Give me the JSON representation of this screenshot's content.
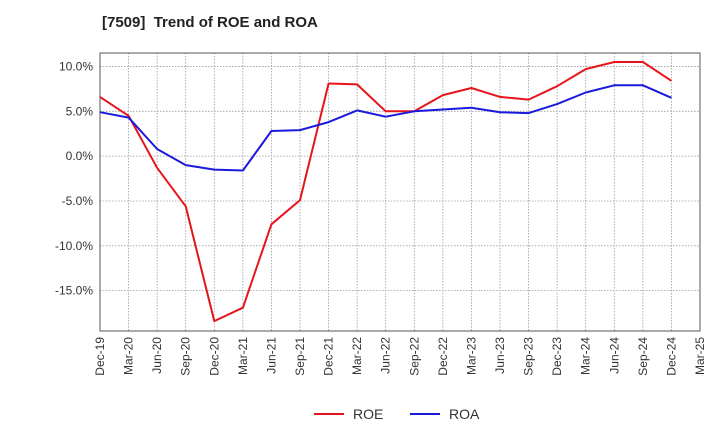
{
  "chart_data": {
    "type": "line",
    "title": "[7509]  Trend of ROE and ROA",
    "xlabel": "",
    "ylabel": "",
    "x": [
      "Dec-19",
      "Mar-20",
      "Jun-20",
      "Sep-20",
      "Dec-20",
      "Mar-21",
      "Jun-21",
      "Sep-21",
      "Dec-21",
      "Mar-22",
      "Jun-22",
      "Sep-22",
      "Dec-22",
      "Mar-23",
      "Jun-23",
      "Sep-23",
      "Dec-23",
      "Mar-24",
      "Jun-24",
      "Sep-24",
      "Dec-24",
      "Mar-25"
    ],
    "yticks": [
      10.0,
      5.0,
      0.0,
      -5.0,
      -10.0,
      -15.0
    ],
    "ytick_labels": [
      "10.0%",
      "5.0%",
      "0.0%",
      "-5.0%",
      "-10.0%",
      "-15.0%"
    ],
    "ylim": [
      -19.5,
      11.5
    ],
    "grid": true,
    "legend_position": "bottom-center",
    "series": [
      {
        "name": "ROE",
        "color": "#e8141b",
        "values": [
          6.6,
          4.5,
          -1.3,
          -5.6,
          -18.4,
          -16.9,
          -7.6,
          -4.9,
          8.1,
          8.0,
          5.0,
          5.0,
          6.8,
          7.6,
          6.6,
          6.3,
          7.8,
          9.7,
          10.5,
          10.5,
          8.4,
          null
        ]
      },
      {
        "name": "ROA",
        "color": "#1a1adc",
        "values": [
          4.9,
          4.3,
          0.8,
          -1.0,
          -1.5,
          -1.6,
          2.8,
          2.9,
          3.8,
          5.1,
          4.4,
          5.0,
          5.2,
          5.4,
          4.9,
          4.8,
          5.8,
          7.1,
          7.9,
          7.9,
          6.5,
          null
        ]
      }
    ]
  }
}
